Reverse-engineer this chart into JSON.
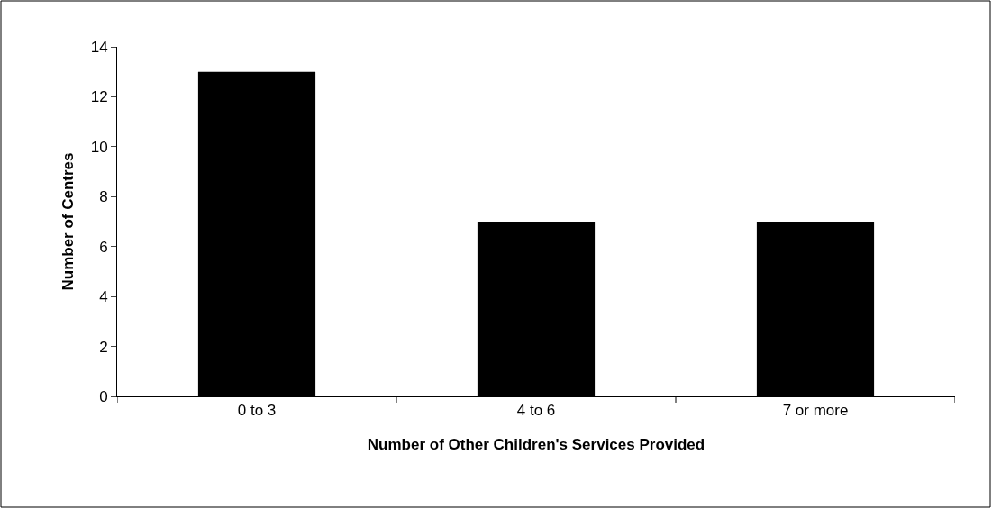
{
  "chart_data": {
    "type": "bar",
    "xlabel": "Number of Other Children's Services Provided",
    "ylabel": "Number of Centres",
    "categories": [
      "0 to 3",
      "4 to 6",
      "7 or more"
    ],
    "values": [
      13,
      7,
      7
    ],
    "color": "#000000",
    "ylim": [
      0,
      14
    ],
    "yticks": [
      0,
      2,
      4,
      6,
      8,
      10,
      12,
      14
    ]
  }
}
